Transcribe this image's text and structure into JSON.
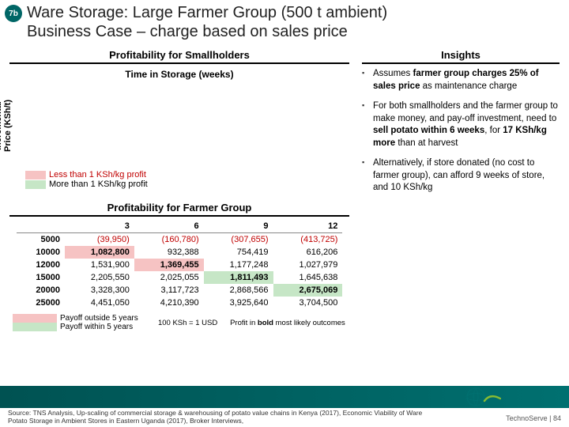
{
  "badge": "7b",
  "title_line1": "Ware Storage: Large Farmer Group (500 t ambient)",
  "title_line2": "Business Case – charge based on sales price",
  "left_header": "Profitability for Smallholders",
  "right_header": "Insights",
  "time_header": "Time in Storage (weeks)",
  "y_axis_label": "Incremental\nPrice (KSh/t)",
  "legend_loss": "Less than 1 KSh/kg profit",
  "legend_profit": "More than 1 KSh/kg profit",
  "farmer_header": "Profitability for Farmer Group",
  "farmer_table": {
    "cols": [
      "3",
      "6",
      "9",
      "12"
    ],
    "rows": [
      {
        "hdr": "5000",
        "cells": [
          {
            "v": "(39,950)",
            "neg": true,
            "bold": false,
            "hl": null
          },
          {
            "v": "(160,780)",
            "neg": true,
            "bold": false,
            "hl": null
          },
          {
            "v": "(307,655)",
            "neg": true,
            "bold": false,
            "hl": null
          },
          {
            "v": "(413,725)",
            "neg": true,
            "bold": false,
            "hl": null
          }
        ]
      },
      {
        "hdr": "10000",
        "cells": [
          {
            "v": "1,082,800",
            "neg": false,
            "bold": true,
            "hl": "red"
          },
          {
            "v": "932,388",
            "neg": false,
            "bold": false,
            "hl": null
          },
          {
            "v": "754,419",
            "neg": false,
            "bold": false,
            "hl": null
          },
          {
            "v": "616,206",
            "neg": false,
            "bold": false,
            "hl": null
          }
        ]
      },
      {
        "hdr": "12000",
        "cells": [
          {
            "v": "1,531,900",
            "neg": false,
            "bold": false,
            "hl": null
          },
          {
            "v": "1,369,455",
            "neg": false,
            "bold": true,
            "hl": "red"
          },
          {
            "v": "1,177,248",
            "neg": false,
            "bold": false,
            "hl": null
          },
          {
            "v": "1,027,979",
            "neg": false,
            "bold": false,
            "hl": null
          }
        ]
      },
      {
        "hdr": "15000",
        "cells": [
          {
            "v": "2,205,550",
            "neg": false,
            "bold": false,
            "hl": null
          },
          {
            "v": "2,025,055",
            "neg": false,
            "bold": false,
            "hl": null
          },
          {
            "v": "1,811,493",
            "neg": false,
            "bold": true,
            "hl": "green"
          },
          {
            "v": "1,645,638",
            "neg": false,
            "bold": false,
            "hl": null
          }
        ]
      },
      {
        "hdr": "20000",
        "cells": [
          {
            "v": "3,328,300",
            "neg": false,
            "bold": false,
            "hl": null
          },
          {
            "v": "3,117,723",
            "neg": false,
            "bold": false,
            "hl": null
          },
          {
            "v": "2,868,566",
            "neg": false,
            "bold": false,
            "hl": null
          },
          {
            "v": "2,675,069",
            "neg": false,
            "bold": true,
            "hl": "green"
          }
        ]
      },
      {
        "hdr": "25000",
        "cells": [
          {
            "v": "4,451,050",
            "neg": false,
            "bold": false,
            "hl": null
          },
          {
            "v": "4,210,390",
            "neg": false,
            "bold": false,
            "hl": null
          },
          {
            "v": "3,925,640",
            "neg": false,
            "bold": false,
            "hl": null
          },
          {
            "v": "3,704,500",
            "neg": false,
            "bold": false,
            "hl": null
          }
        ]
      }
    ]
  },
  "payoff_out": "Payoff outside 5 years",
  "payoff_in": "Payoff within 5 years",
  "footnote_a": "100 KSh = 1 USD",
  "footnote_b": "Profit in bold most likely outcomes",
  "insight1_a": "Assumes ",
  "insight1_b": "farmer group charges 25% of sales price",
  "insight1_c": " as maintenance charge",
  "insight2_a": "For both smallholders and the farmer group to make money, and pay-off investment, need to ",
  "insight2_b": "sell potato within 6 weeks",
  "insight2_c": ", for ",
  "insight2_d": "17 KSh/kg more",
  "insight2_e": " than at harvest",
  "insight3": "Alternatively, if store donated (no cost to farmer group), can afford 9 weeks of store, and 10 KSh/kg",
  "source": "Source: TNS Analysis, Up-scaling of commercial storage & warehousing of potato value chains in Kenya (2017), Economic Viability of Ware Potato Storage in Ambient Stores in Eastern Uganda (2017), Broker Interviews,",
  "brand": "TechnoServe | 84",
  "colors": {
    "teal": "#006666",
    "loss_bg": "#f6c3c3",
    "profit_bg": "#c6e6c6"
  }
}
